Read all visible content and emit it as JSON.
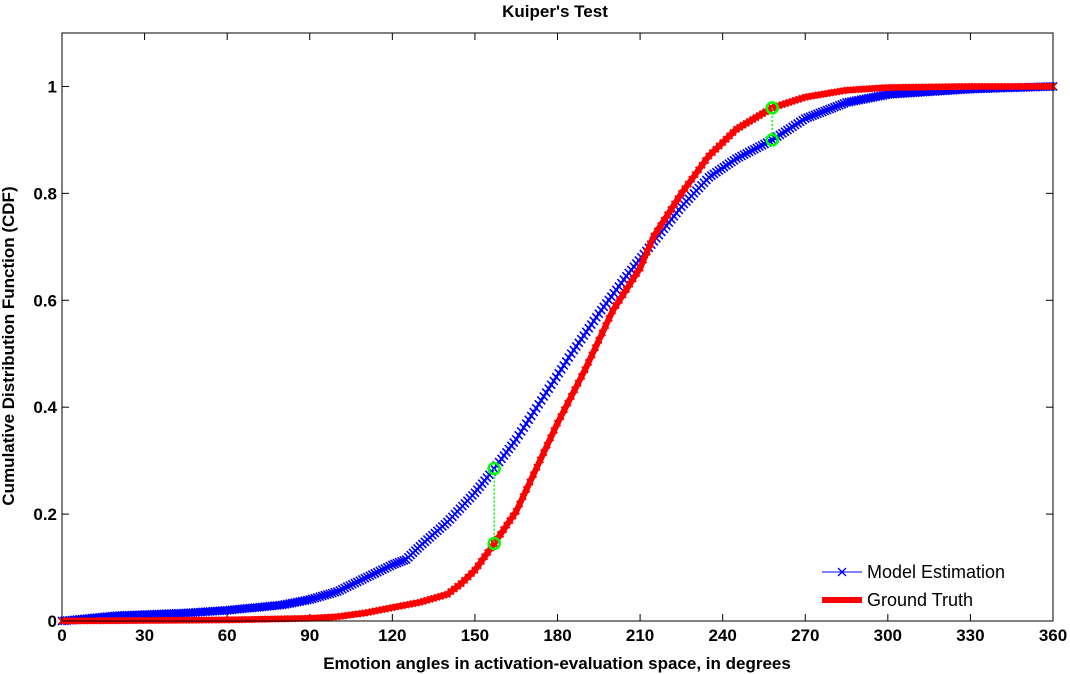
{
  "chart_data": {
    "type": "line",
    "title": "Kuiper's Test",
    "xlabel": "Emotion angles in activation-evaluation space, in degrees",
    "ylabel": "Cumulative Distribution Function (CDF)",
    "xlim": [
      0,
      360
    ],
    "ylim": [
      0,
      1.1
    ],
    "xticks": [
      0,
      30,
      60,
      90,
      120,
      150,
      180,
      210,
      240,
      270,
      300,
      330,
      360
    ],
    "yticks": [
      0,
      0.2,
      0.4,
      0.6,
      0.8,
      1
    ],
    "grid": false,
    "legend_position": "bottom-right",
    "series": [
      {
        "name": "Model Estimation",
        "color": "#0000ff",
        "marker": "x",
        "points": [
          [
            0,
            0
          ],
          [
            10,
            0.005
          ],
          [
            20,
            0.01
          ],
          [
            30,
            0.012
          ],
          [
            45,
            0.015
          ],
          [
            60,
            0.02
          ],
          [
            70,
            0.025
          ],
          [
            80,
            0.03
          ],
          [
            90,
            0.04
          ],
          [
            100,
            0.055
          ],
          [
            110,
            0.08
          ],
          [
            120,
            0.105
          ],
          [
            125,
            0.115
          ],
          [
            130,
            0.14
          ],
          [
            140,
            0.185
          ],
          [
            150,
            0.24
          ],
          [
            157,
            0.285
          ],
          [
            165,
            0.34
          ],
          [
            175,
            0.42
          ],
          [
            185,
            0.5
          ],
          [
            195,
            0.575
          ],
          [
            205,
            0.645
          ],
          [
            215,
            0.71
          ],
          [
            225,
            0.775
          ],
          [
            235,
            0.83
          ],
          [
            245,
            0.865
          ],
          [
            258,
            0.9
          ],
          [
            270,
            0.94
          ],
          [
            285,
            0.97
          ],
          [
            300,
            0.985
          ],
          [
            330,
            0.995
          ],
          [
            360,
            1.0
          ]
        ]
      },
      {
        "name": "Ground Truth",
        "color": "#ff0000",
        "marker": "none",
        "points": [
          [
            0,
            0
          ],
          [
            30,
            0.001
          ],
          [
            60,
            0.002
          ],
          [
            90,
            0.005
          ],
          [
            100,
            0.008
          ],
          [
            110,
            0.015
          ],
          [
            120,
            0.025
          ],
          [
            130,
            0.035
          ],
          [
            140,
            0.05
          ],
          [
            145,
            0.07
          ],
          [
            150,
            0.095
          ],
          [
            157,
            0.145
          ],
          [
            165,
            0.205
          ],
          [
            170,
            0.26
          ],
          [
            180,
            0.37
          ],
          [
            190,
            0.47
          ],
          [
            200,
            0.58
          ],
          [
            210,
            0.66
          ],
          [
            215,
            0.72
          ],
          [
            225,
            0.8
          ],
          [
            235,
            0.87
          ],
          [
            245,
            0.92
          ],
          [
            258,
            0.96
          ],
          [
            270,
            0.98
          ],
          [
            285,
            0.993
          ],
          [
            300,
            0.998
          ],
          [
            330,
            1.0
          ],
          [
            360,
            1.0
          ]
        ]
      }
    ],
    "annotations": [
      {
        "x": 157,
        "y_top": 0.285,
        "y_bottom": 0.145,
        "color": "#00ff00"
      },
      {
        "x": 258,
        "y_top": 0.96,
        "y_bottom": 0.9,
        "color": "#00ff00"
      }
    ]
  }
}
